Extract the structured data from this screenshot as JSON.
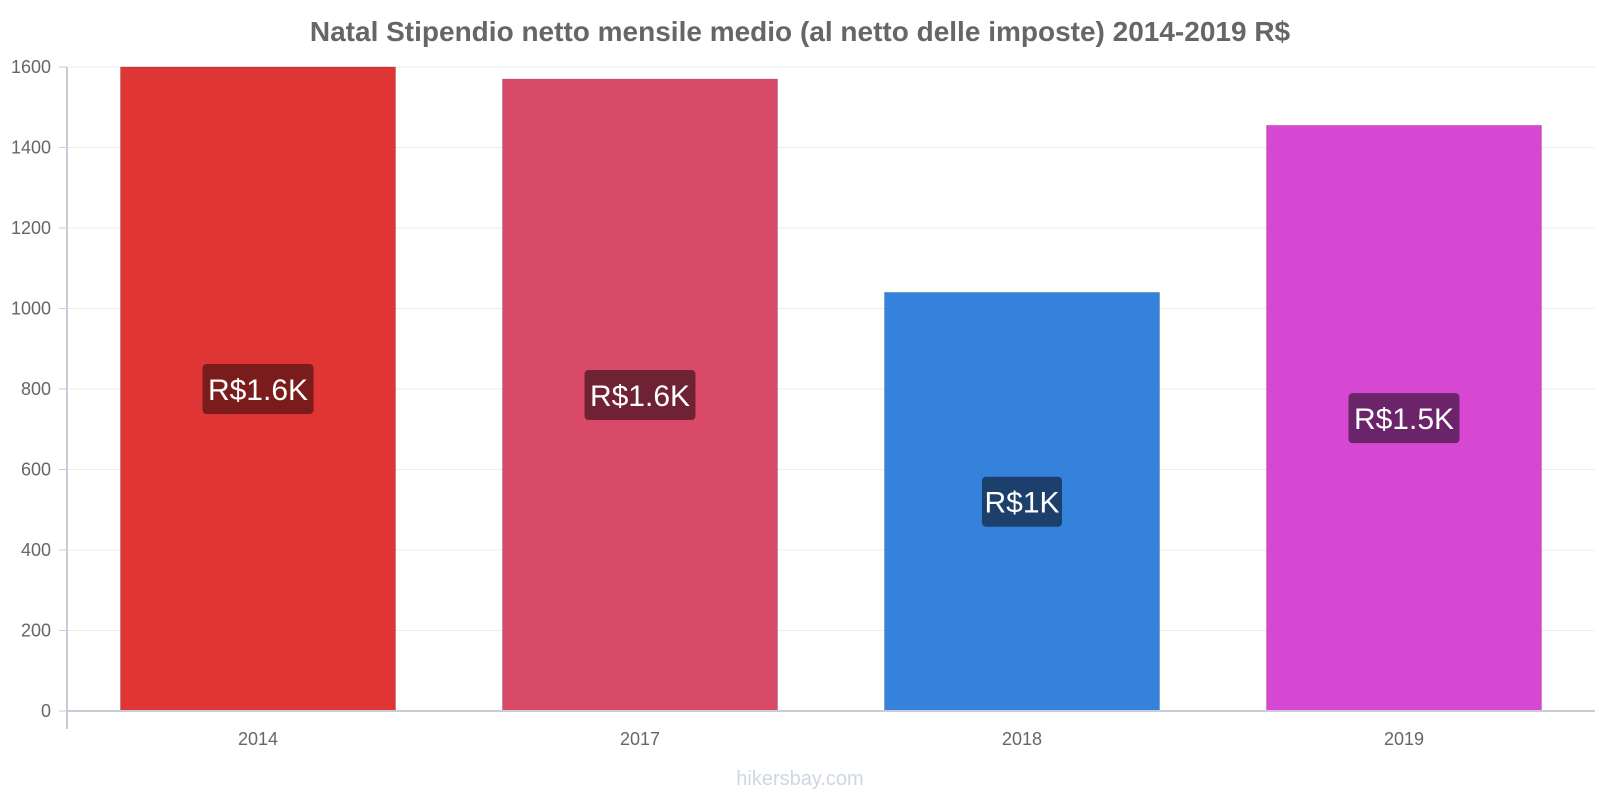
{
  "chart_data": {
    "type": "bar",
    "title": "Natal Stipendio netto mensile medio (al netto delle imposte) 2014-2019 R$",
    "xlabel": "",
    "ylabel": "",
    "categories": [
      "2014",
      "2017",
      "2018",
      "2019"
    ],
    "values": [
      1600,
      1570,
      1040,
      1455
    ],
    "data_labels": [
      "R$1.6K",
      "R$1.6K",
      "R$1K",
      "R$1.5K"
    ],
    "bar_colors": [
      "#e03535",
      "#d94a68",
      "#3582dd",
      "#d648d1"
    ],
    "label_colors": [
      "#7a1c1c",
      "#6e2233",
      "#1c3f6b",
      "#6b2369"
    ],
    "ylim": [
      0,
      1600
    ],
    "yticks": [
      0,
      200,
      400,
      600,
      800,
      1000,
      1200,
      1400,
      1600
    ],
    "grid": true,
    "legend": "none"
  },
  "watermark": "hikersbay.com"
}
